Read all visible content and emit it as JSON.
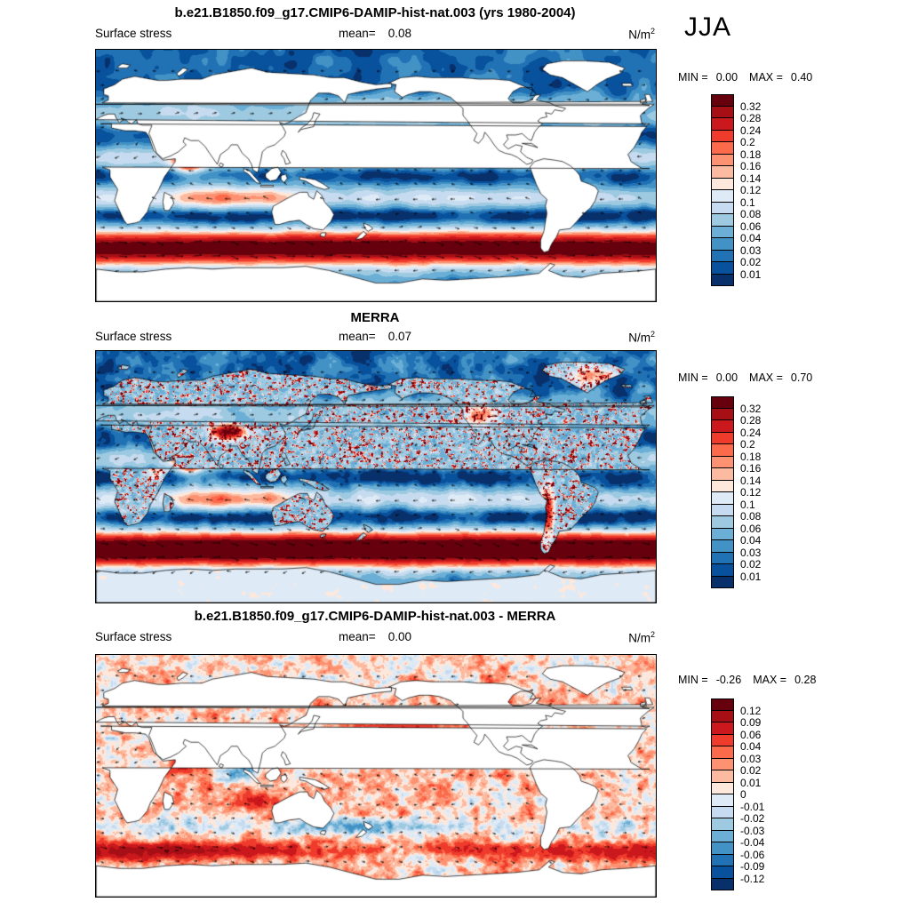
{
  "season": "JJA",
  "panels": [
    {
      "title": "b.e21.B1850.f09_g17.CMIP6-DAMIP-hist-nat.003 (yrs 1980-2004)",
      "field_label": "Surface stress",
      "mean_label": "mean=",
      "mean_value": "0.08",
      "units_base": "N/m",
      "units_exp": "2",
      "min_label": "MIN =",
      "min_value": "0.00",
      "max_label": "MAX =",
      "max_value": "0.40"
    },
    {
      "title": "MERRA",
      "field_label": "Surface stress",
      "mean_label": "mean=",
      "mean_value": "0.07",
      "units_base": "N/m",
      "units_exp": "2",
      "min_label": "MIN =",
      "min_value": "0.00",
      "max_label": "MAX =",
      "max_value": "0.70"
    },
    {
      "title": "b.e21.B1850.f09_g17.CMIP6-DAMIP-hist-nat.003 - MERRA",
      "field_label": "Surface stress",
      "mean_label": "mean=",
      "mean_value": "0.00",
      "units_base": "N/m",
      "units_exp": "2",
      "min_label": "MIN =",
      "min_value": "-0.26",
      "max_label": "MAX =",
      "max_value": "0.28"
    }
  ],
  "chart_data": [
    {
      "type": "heatmap",
      "subtype": "global-map-with-vector-overlay",
      "title": "b.e21.B1850.f09_g17.CMIP6-DAMIP-hist-nat.003 (yrs 1980-2004)",
      "variable": "Surface stress",
      "units": "N/m2",
      "season": "JJA",
      "mean": 0.08,
      "min": 0.0,
      "max": 0.4,
      "levels": [
        0.01,
        0.02,
        0.03,
        0.04,
        0.06,
        0.08,
        0.1,
        0.12,
        0.14,
        0.16,
        0.18,
        0.2,
        0.24,
        0.28,
        0.32
      ],
      "tick_labels": [
        "0.32",
        "0.28",
        "0.24",
        "0.2",
        "0.18",
        "0.16",
        "0.14",
        "0.12",
        "0.1",
        "0.08",
        "0.06",
        "0.04",
        "0.03",
        "0.02",
        "0.01"
      ],
      "palette": [
        "#08306b",
        "#08519c",
        "#2171b5",
        "#4292c6",
        "#6baed6",
        "#9ecae1",
        "#c6dbef",
        "#deebf7",
        "#fee8dc",
        "#fcbba1",
        "#fc9272",
        "#fb6a4a",
        "#ef3b2c",
        "#cb181d",
        "#a50f15",
        "#67000d"
      ]
    },
    {
      "type": "heatmap",
      "subtype": "global-map-with-vector-overlay",
      "title": "MERRA",
      "variable": "Surface stress",
      "units": "N/m2",
      "season": "JJA",
      "mean": 0.07,
      "min": 0.0,
      "max": 0.7,
      "levels": [
        0.01,
        0.02,
        0.03,
        0.04,
        0.06,
        0.08,
        0.1,
        0.12,
        0.14,
        0.16,
        0.18,
        0.2,
        0.24,
        0.28,
        0.32
      ],
      "tick_labels": [
        "0.32",
        "0.28",
        "0.24",
        "0.2",
        "0.18",
        "0.16",
        "0.14",
        "0.12",
        "0.1",
        "0.08",
        "0.06",
        "0.04",
        "0.03",
        "0.02",
        "0.01"
      ],
      "palette": [
        "#08306b",
        "#08519c",
        "#2171b5",
        "#4292c6",
        "#6baed6",
        "#9ecae1",
        "#c6dbef",
        "#deebf7",
        "#fee8dc",
        "#fcbba1",
        "#fc9272",
        "#fb6a4a",
        "#ef3b2c",
        "#cb181d",
        "#a50f15",
        "#67000d"
      ]
    },
    {
      "type": "heatmap",
      "subtype": "global-difference-map-with-vector-overlay",
      "title": "b.e21.B1850.f09_g17.CMIP6-DAMIP-hist-nat.003 - MERRA",
      "variable": "Surface stress",
      "units": "N/m2",
      "season": "JJA",
      "mean": 0.0,
      "min": -0.26,
      "max": 0.28,
      "levels": [
        -0.12,
        -0.09,
        -0.06,
        -0.04,
        -0.03,
        -0.02,
        -0.01,
        0,
        0.01,
        0.02,
        0.03,
        0.04,
        0.06,
        0.09,
        0.12
      ],
      "tick_labels": [
        "0.12",
        "0.09",
        "0.06",
        "0.04",
        "0.03",
        "0.02",
        "0.01",
        "0",
        "-0.01",
        "-0.02",
        "-0.03",
        "-0.04",
        "-0.06",
        "-0.09",
        "-0.12"
      ],
      "palette": [
        "#08306b",
        "#08519c",
        "#2171b5",
        "#4292c6",
        "#6baed6",
        "#9ecae1",
        "#c6dbef",
        "#deebf7",
        "#fee8dc",
        "#fcbba1",
        "#fc9272",
        "#fb6a4a",
        "#ef3b2c",
        "#cb181d",
        "#a50f15",
        "#67000d"
      ]
    }
  ]
}
